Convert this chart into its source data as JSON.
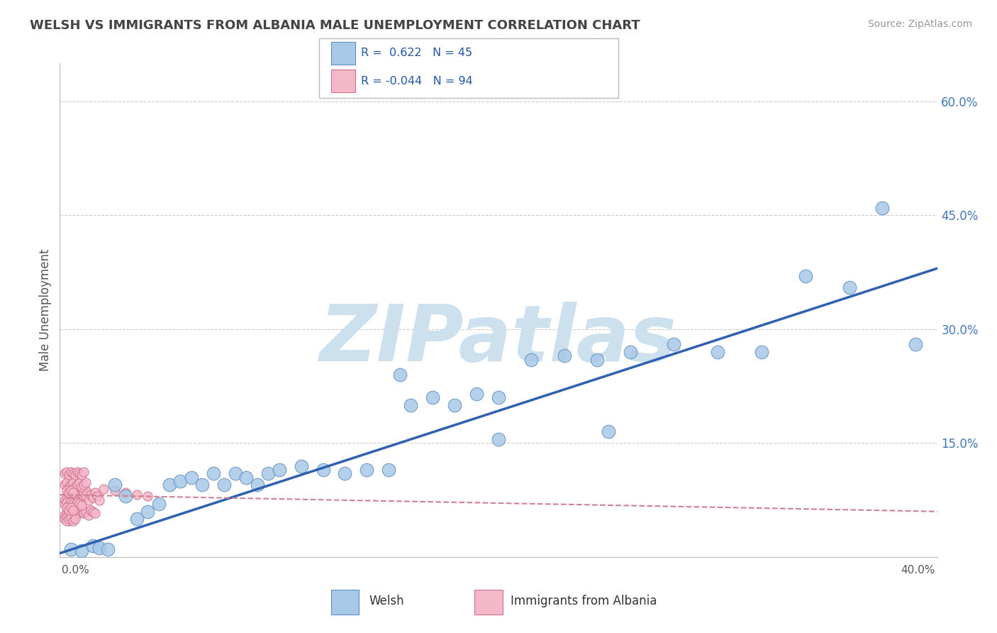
{
  "title": "WELSH VS IMMIGRANTS FROM ALBANIA MALE UNEMPLOYMENT CORRELATION CHART",
  "source": "Source: ZipAtlas.com",
  "ylabel": "Male Unemployment",
  "xlim": [
    0.0,
    0.4
  ],
  "ylim": [
    0.0,
    0.65
  ],
  "xticks": [
    0.0,
    0.05,
    0.1,
    0.15,
    0.2,
    0.25,
    0.3,
    0.35,
    0.4
  ],
  "yticks_right": [
    0.0,
    0.15,
    0.3,
    0.45,
    0.6
  ],
  "ytick_labels_right": [
    "",
    "15.0%",
    "30.0%",
    "45.0%",
    "60.0%"
  ],
  "watermark": "ZIPatlas",
  "blue_color": "#a8c8e8",
  "pink_color": "#f4b8c8",
  "blue_edge_color": "#6090c0",
  "pink_edge_color": "#d07090",
  "blue_line_color": "#3060b0",
  "pink_line_color": "#d08090",
  "blue_scatter_x": [
    0.005,
    0.01,
    0.015,
    0.018,
    0.022,
    0.025,
    0.03,
    0.035,
    0.04,
    0.045,
    0.05,
    0.055,
    0.06,
    0.065,
    0.07,
    0.075,
    0.08,
    0.085,
    0.09,
    0.095,
    0.1,
    0.11,
    0.12,
    0.13,
    0.14,
    0.15,
    0.16,
    0.17,
    0.18,
    0.19,
    0.2,
    0.215,
    0.23,
    0.245,
    0.26,
    0.28,
    0.3,
    0.32,
    0.34,
    0.36,
    0.375,
    0.39,
    0.2,
    0.25,
    0.155
  ],
  "blue_scatter_y": [
    0.01,
    0.008,
    0.015,
    0.012,
    0.01,
    0.095,
    0.08,
    0.05,
    0.06,
    0.07,
    0.095,
    0.1,
    0.105,
    0.095,
    0.11,
    0.095,
    0.11,
    0.105,
    0.095,
    0.11,
    0.115,
    0.12,
    0.115,
    0.11,
    0.115,
    0.115,
    0.2,
    0.21,
    0.2,
    0.215,
    0.21,
    0.26,
    0.265,
    0.26,
    0.27,
    0.28,
    0.27,
    0.27,
    0.37,
    0.355,
    0.46,
    0.28,
    0.155,
    0.165,
    0.24
  ],
  "pink_scatter_x": [
    0.002,
    0.003,
    0.004,
    0.004,
    0.005,
    0.005,
    0.006,
    0.006,
    0.007,
    0.007,
    0.008,
    0.008,
    0.009,
    0.009,
    0.01,
    0.01,
    0.011,
    0.011,
    0.012,
    0.012,
    0.013,
    0.014,
    0.015,
    0.016,
    0.017,
    0.018,
    0.002,
    0.003,
    0.004,
    0.005,
    0.005,
    0.006,
    0.007,
    0.008,
    0.009,
    0.01,
    0.01,
    0.011,
    0.012,
    0.013,
    0.014,
    0.015,
    0.016,
    0.002,
    0.003,
    0.004,
    0.005,
    0.006,
    0.007,
    0.008,
    0.009,
    0.01,
    0.011,
    0.012,
    0.002,
    0.003,
    0.004,
    0.005,
    0.006,
    0.007,
    0.008,
    0.009,
    0.01,
    0.011,
    0.002,
    0.003,
    0.004,
    0.005,
    0.006,
    0.007,
    0.008,
    0.009,
    0.01,
    0.002,
    0.003,
    0.004,
    0.005,
    0.006,
    0.003,
    0.004,
    0.005,
    0.006,
    0.007,
    0.003,
    0.004,
    0.005,
    0.006,
    0.003,
    0.004,
    0.005,
    0.006,
    0.02,
    0.025,
    0.03,
    0.035,
    0.04
  ],
  "pink_scatter_y": [
    0.075,
    0.08,
    0.082,
    0.09,
    0.078,
    0.085,
    0.08,
    0.088,
    0.075,
    0.082,
    0.078,
    0.085,
    0.08,
    0.087,
    0.075,
    0.082,
    0.078,
    0.085,
    0.08,
    0.088,
    0.075,
    0.082,
    0.078,
    0.085,
    0.08,
    0.075,
    0.055,
    0.06,
    0.058,
    0.062,
    0.065,
    0.06,
    0.055,
    0.06,
    0.058,
    0.062,
    0.065,
    0.058,
    0.06,
    0.055,
    0.062,
    0.06,
    0.058,
    0.095,
    0.098,
    0.092,
    0.095,
    0.098,
    0.092,
    0.095,
    0.098,
    0.092,
    0.095,
    0.098,
    0.11,
    0.112,
    0.108,
    0.112,
    0.11,
    0.108,
    0.112,
    0.11,
    0.108,
    0.112,
    0.07,
    0.072,
    0.068,
    0.072,
    0.07,
    0.068,
    0.072,
    0.07,
    0.068,
    0.05,
    0.052,
    0.048,
    0.052,
    0.05,
    0.048,
    0.05,
    0.052,
    0.048,
    0.05,
    0.088,
    0.085,
    0.088,
    0.085,
    0.065,
    0.062,
    0.065,
    0.062,
    0.09,
    0.088,
    0.085,
    0.082,
    0.08
  ],
  "blue_trendline_x": [
    0.0,
    0.4
  ],
  "blue_trendline_y": [
    0.005,
    0.38
  ],
  "pink_trendline_x": [
    0.0,
    0.4
  ],
  "pink_trendline_y": [
    0.082,
    0.06
  ],
  "background_color": "#ffffff",
  "grid_color": "#cccccc",
  "title_color": "#444444",
  "source_color": "#999999",
  "watermark_color": "#cde0ee",
  "watermark_fontsize": 80
}
